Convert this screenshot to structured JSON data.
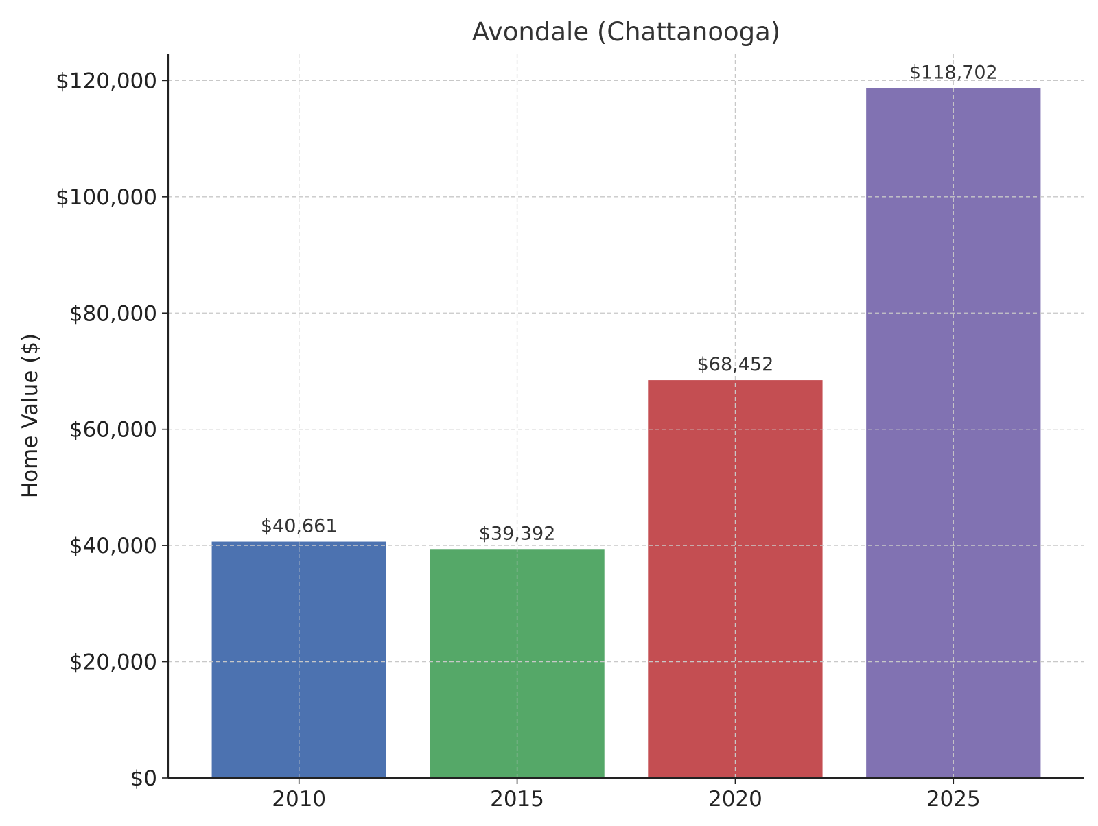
{
  "chart_data": {
    "type": "bar",
    "title": "Avondale (Chattanooga)",
    "xlabel": "",
    "ylabel": "Home Value ($)",
    "categories": [
      "2010",
      "2015",
      "2020",
      "2025"
    ],
    "values": [
      40661,
      39392,
      68452,
      118702
    ],
    "value_labels": [
      "$40,661",
      "$39,392",
      "$68,452",
      "$118,702"
    ],
    "colors": [
      "#4c72b0",
      "#55a868",
      "#c44e52",
      "#8172b2"
    ],
    "ylim": [
      0,
      124650
    ],
    "yticks": [
      0,
      20000,
      40000,
      60000,
      80000,
      100000,
      120000
    ],
    "ytick_labels": [
      "$0",
      "$20,000",
      "$40,000",
      "$60,000",
      "$80,000",
      "$100,000",
      "$120,000"
    ],
    "grid": true,
    "legend": "none"
  }
}
